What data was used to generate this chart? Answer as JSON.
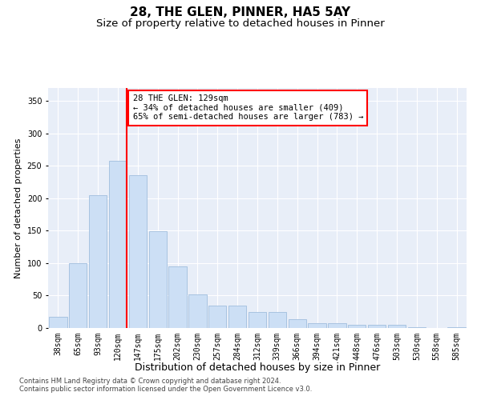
{
  "title": "28, THE GLEN, PINNER, HA5 5AY",
  "subtitle": "Size of property relative to detached houses in Pinner",
  "xlabel": "Distribution of detached houses by size in Pinner",
  "ylabel": "Number of detached properties",
  "bar_labels": [
    "38sqm",
    "65sqm",
    "93sqm",
    "120sqm",
    "147sqm",
    "175sqm",
    "202sqm",
    "230sqm",
    "257sqm",
    "284sqm",
    "312sqm",
    "339sqm",
    "366sqm",
    "394sqm",
    "421sqm",
    "448sqm",
    "476sqm",
    "503sqm",
    "530sqm",
    "558sqm",
    "585sqm"
  ],
  "bar_values": [
    17,
    100,
    205,
    258,
    235,
    149,
    95,
    52,
    35,
    35,
    25,
    25,
    14,
    8,
    7,
    5,
    5,
    5,
    1,
    0,
    1
  ],
  "bar_color": "#ccdff5",
  "bar_edgecolor": "#a0bedd",
  "property_line_color": "red",
  "annotation_title": "28 THE GLEN: 129sqm",
  "annotation_line1": "← 34% of detached houses are smaller (409)",
  "annotation_line2": "65% of semi-detached houses are larger (783) →",
  "annotation_box_color": "white",
  "annotation_box_edgecolor": "red",
  "ylim": [
    0,
    370
  ],
  "background_color": "#e8eef8",
  "footer1": "Contains HM Land Registry data © Crown copyright and database right 2024.",
  "footer2": "Contains public sector information licensed under the Open Government Licence v3.0.",
  "grid_color": "white",
  "title_fontsize": 11,
  "subtitle_fontsize": 9.5,
  "xlabel_fontsize": 9,
  "ylabel_fontsize": 8,
  "tick_fontsize": 7,
  "footer_fontsize": 6,
  "annotation_fontsize": 7.5
}
